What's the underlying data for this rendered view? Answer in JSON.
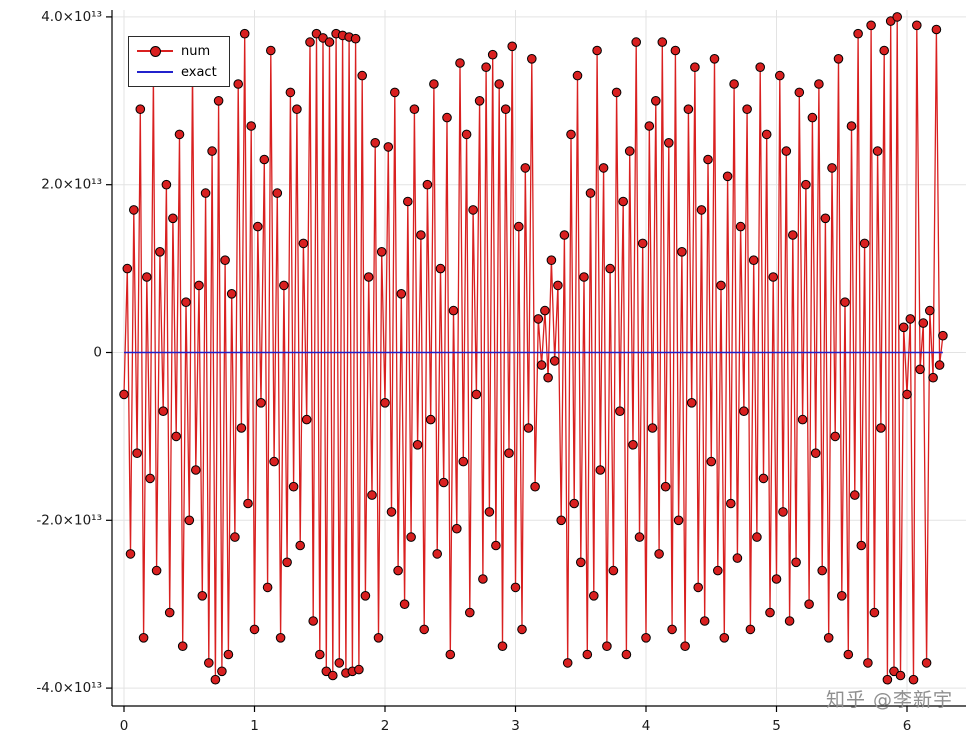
{
  "watermark_text": "知乎 @李新宇",
  "legend": {
    "position": "top-left",
    "items": [
      {
        "label": "num",
        "color": "#d92020",
        "marker": true,
        "marker_edge": "#000000"
      },
      {
        "label": "exact",
        "color": "#2121cc",
        "marker": false
      }
    ]
  },
  "chart_data": {
    "type": "line",
    "title": "",
    "xlabel": "",
    "ylabel": "",
    "grid": true,
    "grid_color": "#e3e3e3",
    "legend_position": "top-left",
    "xlim": [
      -0.09,
      6.46
    ],
    "ylim": [
      -42000000000000.0,
      42000000000000.0
    ],
    "x_ticks": [
      {
        "value": 0,
        "label": "0"
      },
      {
        "value": 1,
        "label": "1"
      },
      {
        "value": 2,
        "label": "2"
      },
      {
        "value": 3,
        "label": "3"
      },
      {
        "value": 4,
        "label": "4"
      },
      {
        "value": 5,
        "label": "5"
      },
      {
        "value": 6,
        "label": "6"
      }
    ],
    "y_ticks": [
      {
        "value_1e13": 4,
        "label": "4.0×10¹³"
      },
      {
        "value_1e13": 2,
        "label": "2.0×10¹³"
      },
      {
        "value_1e13": 0,
        "label": "0"
      },
      {
        "value_1e13": -2,
        "label": "-2.0×10¹³"
      },
      {
        "value_1e13": -4,
        "label": "-4.0×10¹³"
      }
    ],
    "series": [
      {
        "name": "num",
        "type": "line+markers",
        "color": "#d92020",
        "marker_edge": "#000000",
        "x_start": 0,
        "x_step": 0.025,
        "n": 252,
        "y_scale": 10000000000000.0,
        "y_1e13": [
          -0.5,
          1.0,
          -2.4,
          1.7,
          -1.2,
          2.9,
          -3.4,
          0.9,
          -1.5,
          3.3,
          -2.6,
          1.2,
          -0.7,
          2.0,
          -3.1,
          1.6,
          -1.0,
          2.6,
          -3.5,
          0.6,
          -2.0,
          3.4,
          -1.4,
          0.8,
          -2.9,
          1.9,
          -3.7,
          2.4,
          -3.9,
          3.0,
          -3.8,
          1.1,
          -3.6,
          0.7,
          -2.2,
          3.2,
          -0.9,
          3.8,
          -1.8,
          2.7,
          -3.3,
          1.5,
          -0.6,
          2.3,
          -2.8,
          3.6,
          -1.3,
          1.9,
          -3.4,
          0.8,
          -2.5,
          3.1,
          -1.6,
          2.9,
          -2.3,
          1.3,
          -0.8,
          3.7,
          -3.2,
          3.8,
          -3.6,
          3.75,
          -3.8,
          3.7,
          -3.85,
          3.8,
          -3.7,
          3.78,
          -3.82,
          3.76,
          -3.8,
          3.74,
          -3.78,
          3.3,
          -2.9,
          0.9,
          -1.7,
          2.5,
          -3.4,
          1.2,
          -0.6,
          2.45,
          -1.9,
          3.1,
          -2.6,
          0.7,
          -3.0,
          1.8,
          -2.2,
          2.9,
          -1.1,
          1.4,
          -3.3,
          2.0,
          -0.8,
          3.2,
          -2.4,
          1.0,
          -1.55,
          2.8,
          -3.6,
          0.5,
          -2.1,
          3.45,
          -1.3,
          2.6,
          -3.1,
          1.7,
          -0.5,
          3.0,
          -2.7,
          3.4,
          -1.9,
          3.55,
          -2.3,
          3.2,
          -3.5,
          2.9,
          -1.2,
          3.65,
          -2.8,
          1.5,
          -3.3,
          2.2,
          -0.9,
          3.5,
          -1.6,
          0.4,
          -0.15,
          0.5,
          -0.3,
          1.1,
          -0.1,
          0.8,
          -2.0,
          1.4,
          -3.7,
          2.6,
          -1.8,
          3.3,
          -2.5,
          0.9,
          -3.6,
          1.9,
          -2.9,
          3.6,
          -1.4,
          2.2,
          -3.5,
          1.0,
          -2.6,
          3.1,
          -0.7,
          1.8,
          -3.6,
          2.4,
          -1.1,
          3.7,
          -2.2,
          1.3,
          -3.4,
          2.7,
          -0.9,
          3.0,
          -2.4,
          3.7,
          -1.6,
          2.5,
          -3.3,
          3.6,
          -2.0,
          1.2,
          -3.5,
          2.9,
          -0.6,
          3.4,
          -2.8,
          1.7,
          -3.2,
          2.3,
          -1.3,
          3.5,
          -2.6,
          0.8,
          -3.4,
          2.1,
          -1.8,
          3.2,
          -2.45,
          1.5,
          -0.7,
          2.9,
          -3.3,
          1.1,
          -2.2,
          3.4,
          -1.5,
          2.6,
          -3.1,
          0.9,
          -2.7,
          3.3,
          -1.9,
          2.4,
          -3.2,
          1.4,
          -2.5,
          3.1,
          -0.8,
          2.0,
          -3.0,
          2.8,
          -1.2,
          3.2,
          -2.6,
          1.6,
          -3.4,
          2.2,
          -1.0,
          3.5,
          -2.9,
          0.6,
          -3.6,
          2.7,
          -1.7,
          3.8,
          -2.3,
          1.3,
          -3.7,
          3.9,
          -3.1,
          2.4,
          -0.9,
          3.6,
          -3.9,
          3.95,
          -3.8,
          4.0,
          -3.85,
          0.3,
          -0.5,
          0.4,
          -3.9,
          3.9,
          -0.2,
          0.35,
          -3.7,
          0.5,
          -0.3,
          3.85,
          -0.15,
          0.2
        ]
      },
      {
        "name": "exact",
        "type": "line",
        "color": "#2121cc",
        "y_const_1e13": 0,
        "x_range": [
          0,
          6.275
        ]
      }
    ]
  }
}
